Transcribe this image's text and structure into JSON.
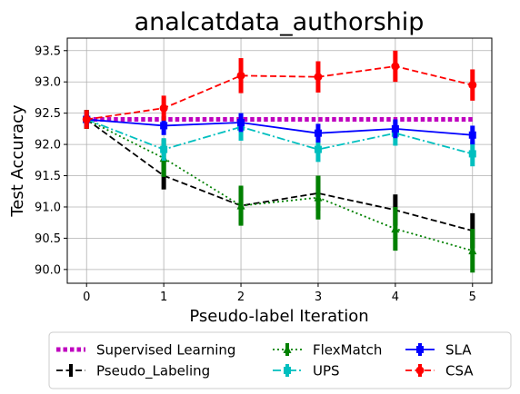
{
  "chart_data": {
    "type": "line",
    "title": "analcatdata_authorship",
    "xlabel": "Pseudo-label Iteration",
    "ylabel": "Test Accuracy",
    "x": [
      0,
      1,
      2,
      3,
      4,
      5
    ],
    "xlim": [
      -0.25,
      5.25
    ],
    "ylim": [
      89.78,
      93.7
    ],
    "xticks": [
      0,
      1,
      2,
      3,
      4,
      5
    ],
    "yticks": [
      90.0,
      90.5,
      91.0,
      91.5,
      92.0,
      92.5,
      93.0,
      93.5
    ],
    "grid": true,
    "legend_position": "bottom",
    "series": [
      {
        "name": "Supervised Learning",
        "color": "#bf00bf",
        "style": "dotted-thick",
        "marker": "none",
        "values": [
          92.4,
          92.4,
          92.4,
          92.4,
          92.4,
          92.4
        ],
        "err": [
          0,
          0,
          0,
          0,
          0,
          0
        ]
      },
      {
        "name": "Pseudo_Labeling",
        "color": "#000000",
        "style": "dashed",
        "marker": "none",
        "values": [
          92.4,
          91.5,
          91.02,
          91.22,
          90.95,
          90.62
        ],
        "err": [
          0.15,
          0.22,
          0.3,
          0.28,
          0.25,
          0.28
        ]
      },
      {
        "name": "FlexMatch",
        "color": "#008000",
        "style": "dotted",
        "marker": "triangle",
        "values": [
          92.4,
          91.78,
          91.02,
          91.15,
          90.65,
          90.3
        ],
        "err": [
          0.15,
          0.3,
          0.32,
          0.35,
          0.35,
          0.35
        ]
      },
      {
        "name": "UPS",
        "color": "#00bfbf",
        "style": "dashdot",
        "marker": "square",
        "values": [
          92.4,
          91.92,
          92.28,
          91.92,
          92.18,
          91.85
        ],
        "err": [
          0.12,
          0.18,
          0.22,
          0.2,
          0.2,
          0.2
        ]
      },
      {
        "name": "SLA",
        "color": "#0000ff",
        "style": "solid",
        "marker": "square",
        "values": [
          92.4,
          92.3,
          92.35,
          92.18,
          92.25,
          92.15
        ],
        "err": [
          0.12,
          0.15,
          0.15,
          0.15,
          0.15,
          0.15
        ]
      },
      {
        "name": "CSA",
        "color": "#ff0000",
        "style": "dashed",
        "marker": "circle",
        "values": [
          92.4,
          92.58,
          93.1,
          93.08,
          93.25,
          92.95
        ],
        "err": [
          0.15,
          0.2,
          0.28,
          0.25,
          0.25,
          0.25
        ]
      }
    ]
  }
}
